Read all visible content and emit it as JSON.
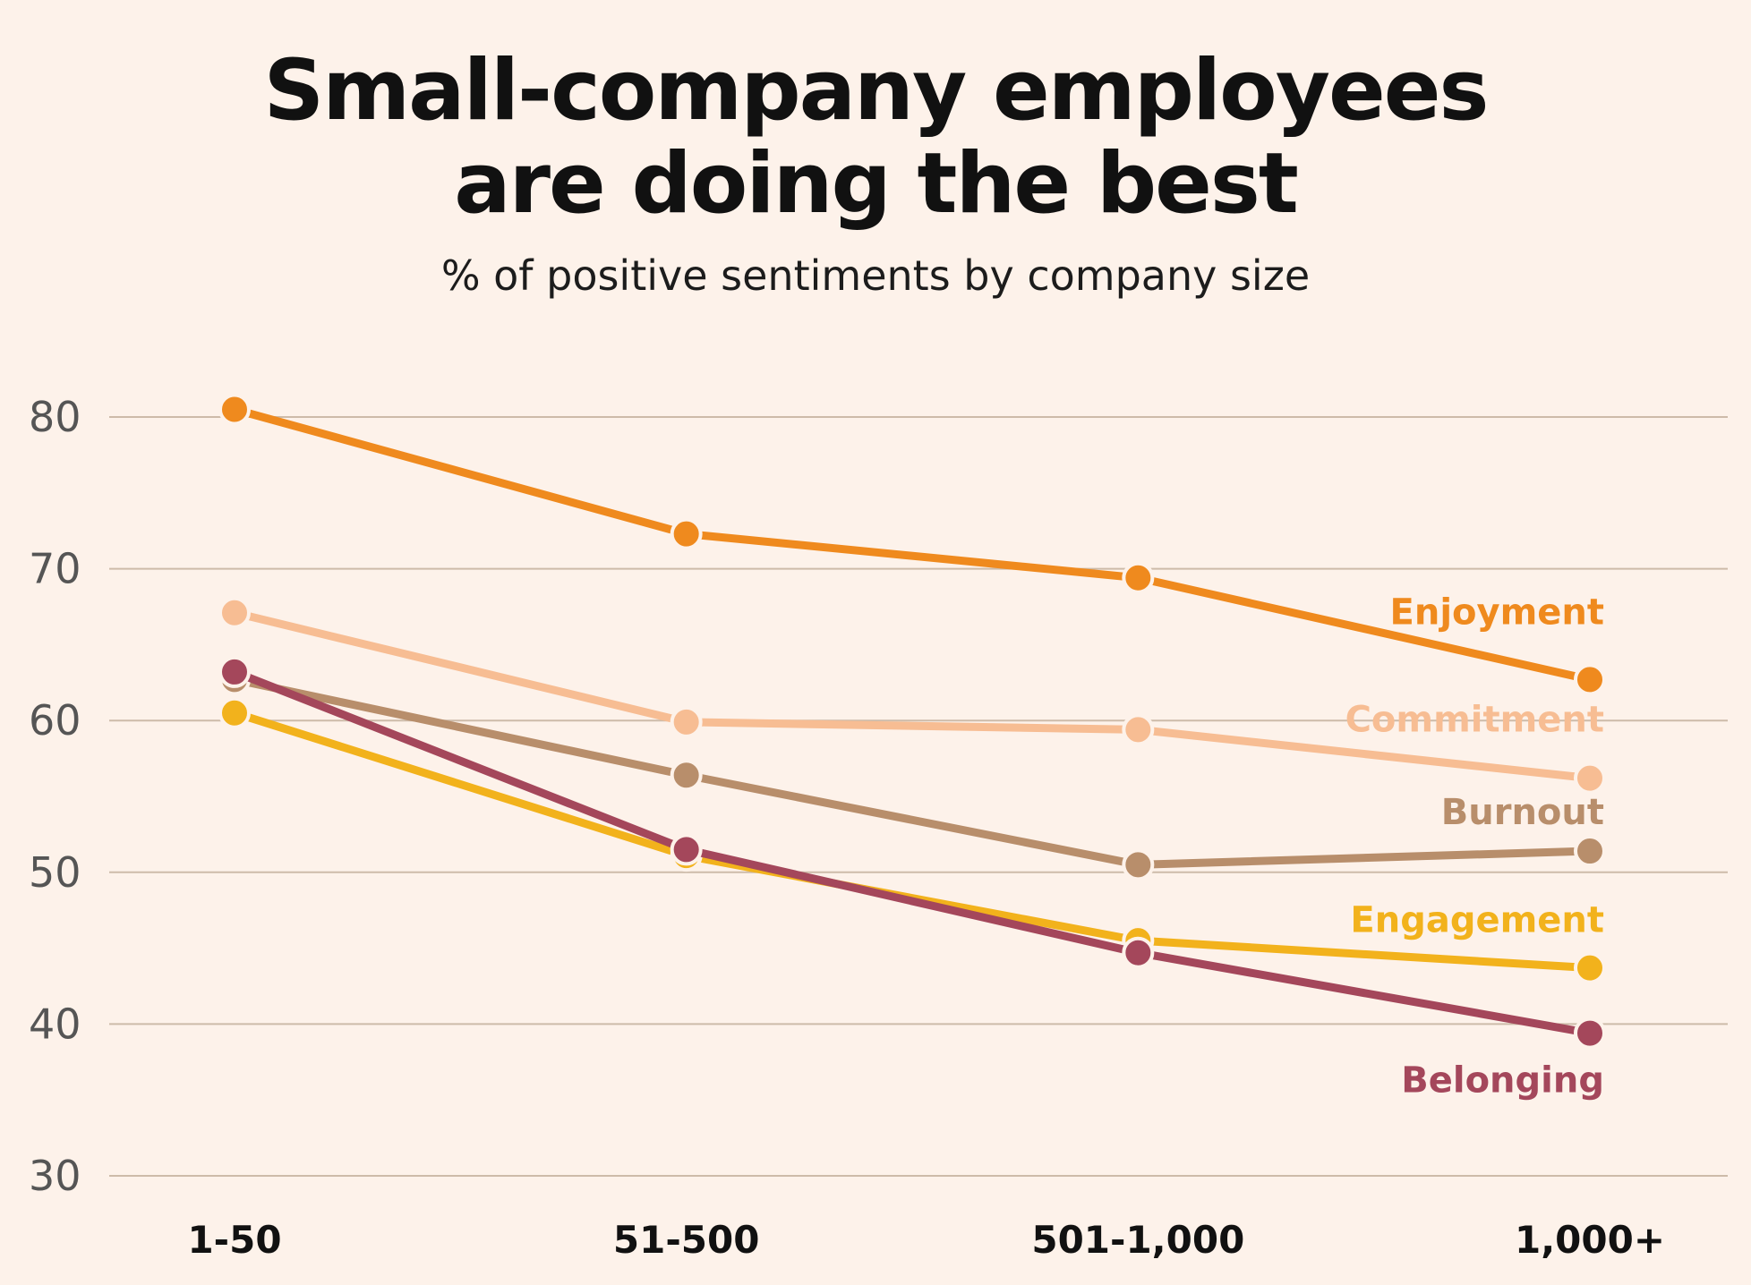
{
  "chart_data": {
    "type": "line",
    "title_lines": [
      "Small-company employees",
      "are doing the best"
    ],
    "subtitle": "% of positive sentiments by company size",
    "xlabel": "",
    "ylabel": "",
    "categories": [
      "1-50",
      "51-500",
      "501-1,000",
      "1,000+"
    ],
    "ylim": [
      30,
      80
    ],
    "yticks": [
      80,
      70,
      60,
      50,
      40,
      30
    ],
    "grid": true,
    "legend": "inline labels at right end of lines",
    "series": [
      {
        "name": "Enjoyment",
        "color": "#ef8a1e",
        "values": [
          80.5,
          72.3,
          69.4,
          62.7
        ]
      },
      {
        "name": "Commitment",
        "color": "#f7bd93",
        "values": [
          67.1,
          59.9,
          59.4,
          56.2
        ]
      },
      {
        "name": "Burnout",
        "color": "#b88e6b",
        "values": [
          62.7,
          56.4,
          50.5,
          51.4
        ]
      },
      {
        "name": "Engagement",
        "color": "#f2b21c",
        "values": [
          60.5,
          51.1,
          45.5,
          43.7
        ]
      },
      {
        "name": "Belonging",
        "color": "#a4475b",
        "values": [
          63.2,
          51.5,
          44.7,
          39.4
        ]
      }
    ]
  }
}
